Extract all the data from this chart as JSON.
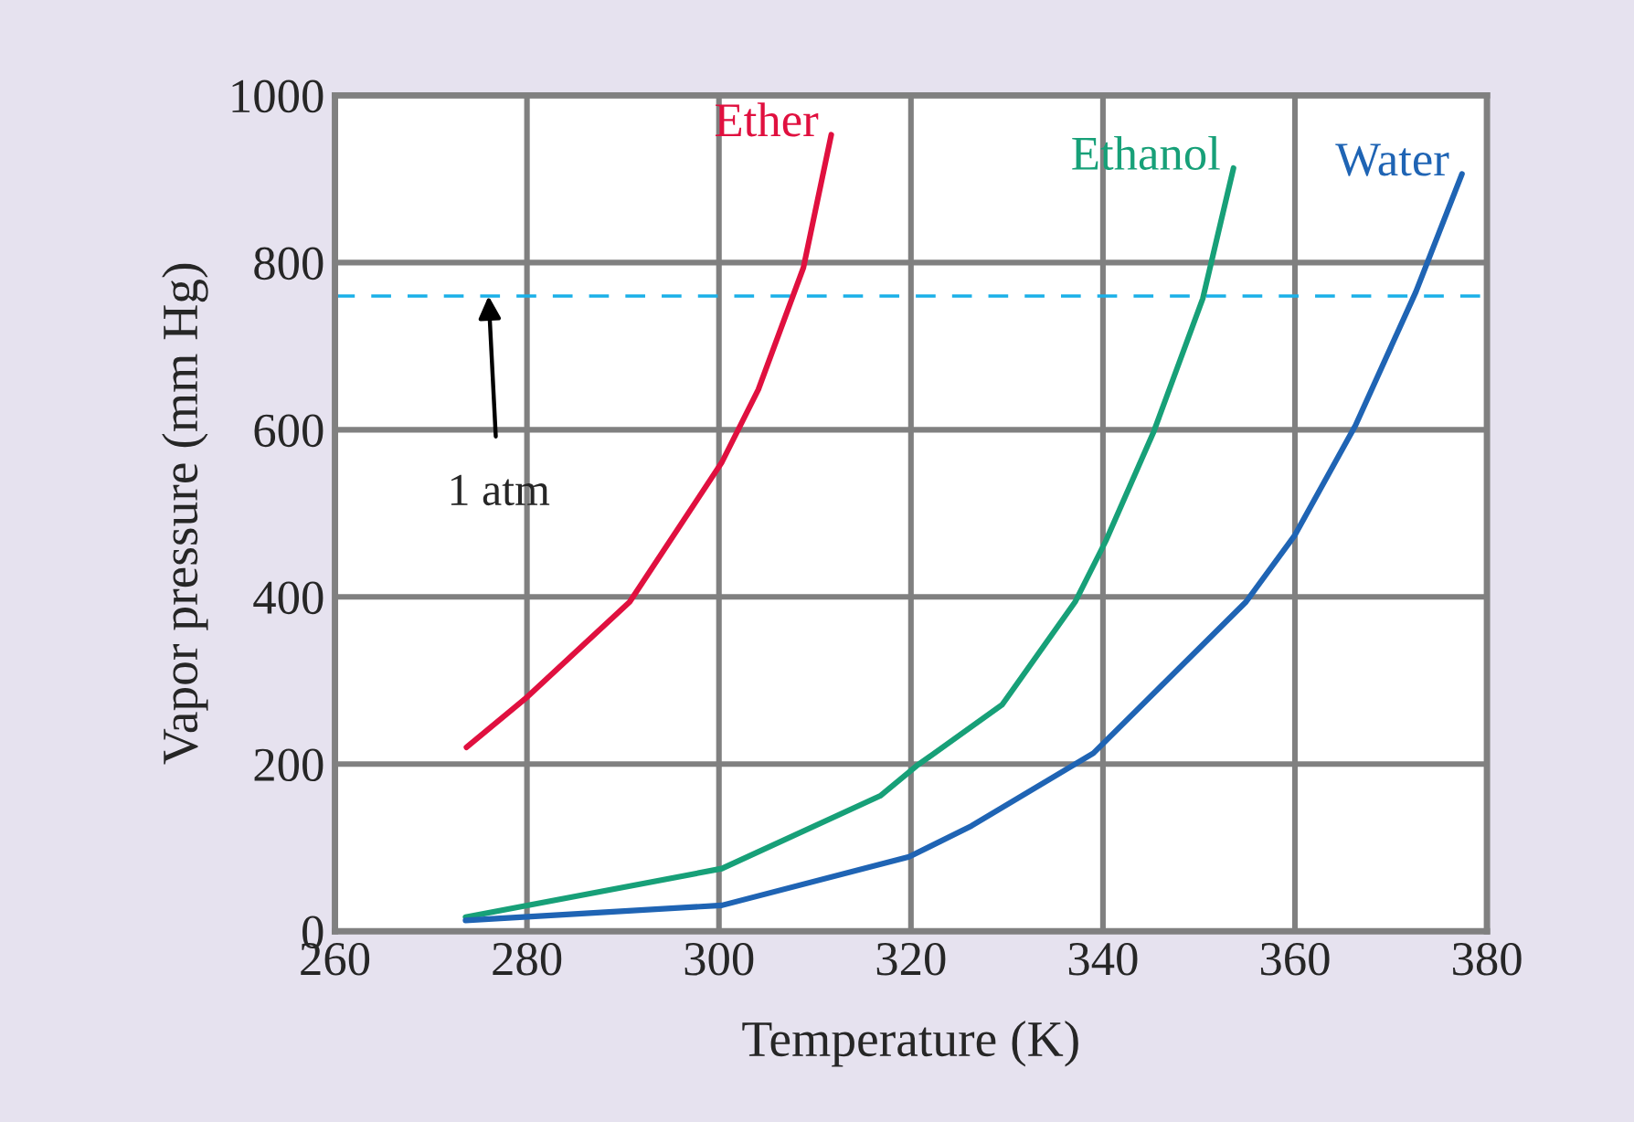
{
  "chart_data": {
    "type": "line",
    "xlabel": "Temperature (K)",
    "ylabel": "Vapor pressure (mm Hg)",
    "xlim": [
      260,
      380
    ],
    "xticks": [
      260,
      280,
      300,
      320,
      340,
      360,
      380
    ],
    "ylim": [
      0,
      1000
    ],
    "yticks": [
      0,
      200,
      400,
      600,
      800,
      1000
    ],
    "grid": true,
    "legend": false,
    "marker": "none",
    "line_style": "solid",
    "series": [
      {
        "name": "Ether",
        "color": "#e0103f",
        "x": [
          273.7,
          280,
          290.7,
          300.3,
          304.1,
          308.8,
          311.7
        ],
        "values": [
          220,
          280,
          394,
          561,
          648,
          794,
          953
        ]
      },
      {
        "name": "Ethanol",
        "color": "#17a078",
        "x": [
          273.6,
          300.3,
          316.8,
          320.6,
          329.5,
          337.1,
          340.3,
          345.3,
          350.4,
          353.6
        ],
        "values": [
          17,
          75,
          162,
          198,
          271,
          394,
          467,
          598,
          757,
          913
        ]
      },
      {
        "name": "Water",
        "color": "#1f64b4",
        "x": [
          273.6,
          300.3,
          319.8,
          326.3,
          339,
          354.9,
          360,
          366.3,
          372.6,
          377.4
        ],
        "values": [
          13,
          31,
          89,
          126,
          213,
          394,
          474,
          605,
          765,
          906
        ]
      }
    ],
    "ref_lines": [
      {
        "axis": "y",
        "value": 760,
        "color": "#1ab0e8",
        "line_style": "dashed"
      }
    ],
    "annotations": [
      {
        "text": "1 atm",
        "x": 276,
        "y": 760
      }
    ]
  }
}
